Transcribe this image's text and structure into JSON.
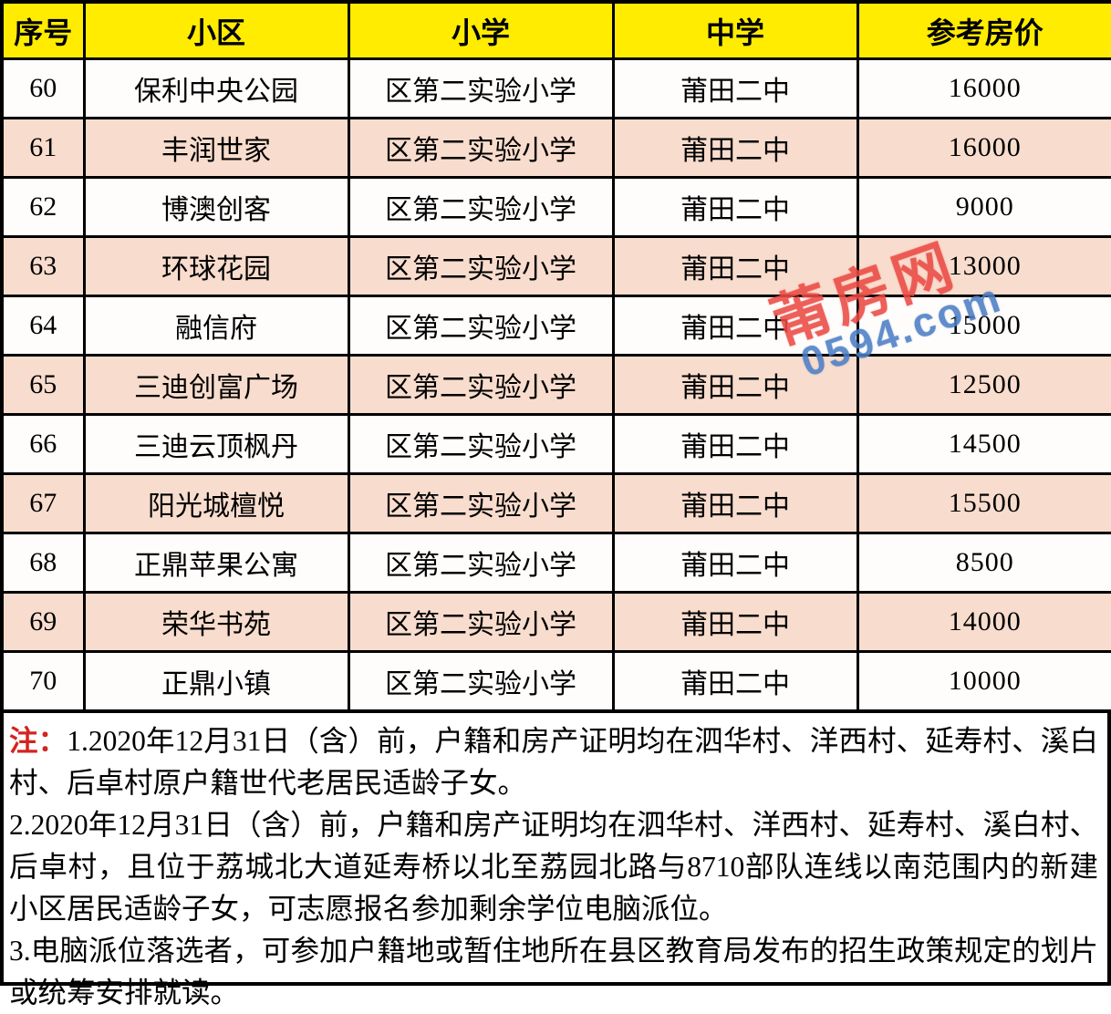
{
  "table": {
    "columns": [
      "序号",
      "小区",
      "小学",
      "中学",
      "参考房价"
    ],
    "rows": [
      {
        "no": "60",
        "community": "保利中央公园",
        "primary": "区第二实验小学",
        "middle": "莆田二中",
        "price": "16000"
      },
      {
        "no": "61",
        "community": "丰润世家",
        "primary": "区第二实验小学",
        "middle": "莆田二中",
        "price": "16000"
      },
      {
        "no": "62",
        "community": "博澳创客",
        "primary": "区第二实验小学",
        "middle": "莆田二中",
        "price": "9000"
      },
      {
        "no": "63",
        "community": "环球花园",
        "primary": "区第二实验小学",
        "middle": "莆田二中",
        "price": "13000"
      },
      {
        "no": "64",
        "community": "融信府",
        "primary": "区第二实验小学",
        "middle": "莆田二中",
        "price": "15000"
      },
      {
        "no": "65",
        "community": "三迪创富广场",
        "primary": "区第二实验小学",
        "middle": "莆田二中",
        "price": "12500"
      },
      {
        "no": "66",
        "community": "三迪云顶枫丹",
        "primary": "区第二实验小学",
        "middle": "莆田二中",
        "price": "14500"
      },
      {
        "no": "67",
        "community": "阳光城檀悦",
        "primary": "区第二实验小学",
        "middle": "莆田二中",
        "price": "15500"
      },
      {
        "no": "68",
        "community": "正鼎苹果公寓",
        "primary": "区第二实验小学",
        "middle": "莆田二中",
        "price": "8500"
      },
      {
        "no": "69",
        "community": "荣华书苑",
        "primary": "区第二实验小学",
        "middle": "莆田二中",
        "price": "14000"
      },
      {
        "no": "70",
        "community": "正鼎小镇",
        "primary": "区第二实验小学",
        "middle": "莆田二中",
        "price": "10000"
      }
    ]
  },
  "notes": {
    "label": "注：",
    "items": [
      "1.2020年12月31日（含）前，户籍和房产证明均在泗华村、洋西村、延寿村、溪白村、后卓村原户籍世代老居民适龄子女。",
      "2.2020年12月31日（含）前，户籍和房产证明均在泗华村、洋西村、延寿村、溪白村、后卓村，且位于荔城北大道延寿桥以北至荔园北路与8710部队连线以南范围内的新建小区居民适龄子女，可志愿报名参加剩余学位电脑派位。",
      "3.电脑派位落选者，可参加户籍地或暂住地所在县区教育局发布的招生政策规定的划片或统筹安排就读。"
    ]
  },
  "watermark": {
    "brand": "莆房网",
    "site": "0594.com"
  },
  "colors": {
    "header_bg": "#FFEC00",
    "row_bg": "#FFFDFC",
    "row_alt_bg": "#F8DCCD",
    "border": "#000000",
    "note_label_red": "#D42420",
    "watermark_red": "#EB4A43",
    "watermark_blue": "#4C7EC5"
  }
}
